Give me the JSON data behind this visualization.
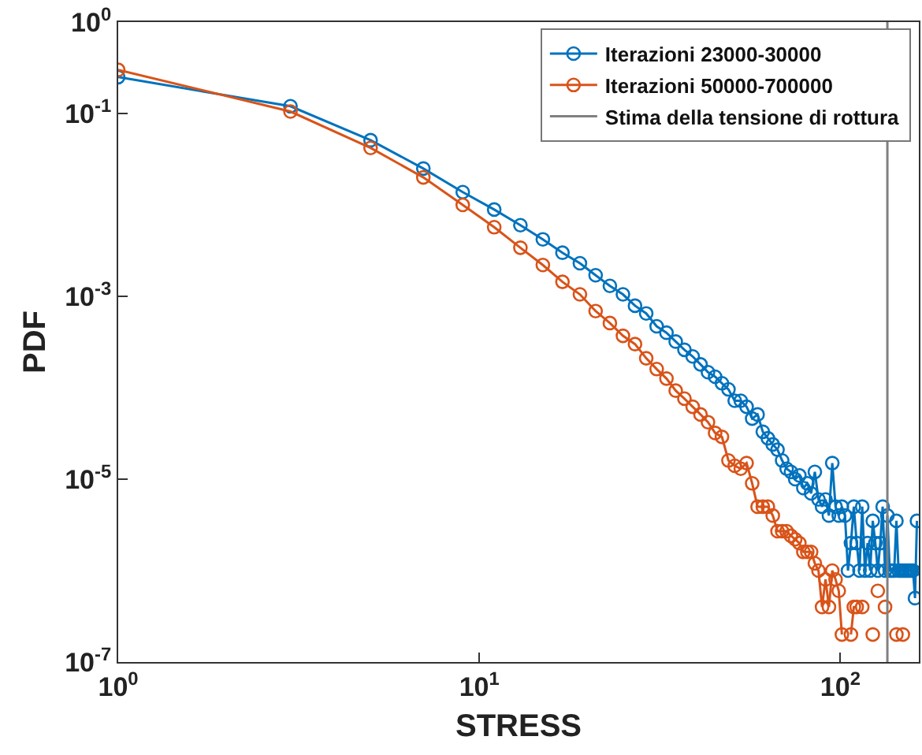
{
  "chart_data": {
    "type": "line",
    "xlabel": "STRESS",
    "ylabel": "PDF",
    "log": "xy",
    "grid": false,
    "legend": "top right",
    "marker": "circle",
    "line_style": "solid",
    "xlim": [
      1,
      165
    ],
    "xticks": [
      {
        "value": 1,
        "label": "10$^{0}$"
      },
      {
        "value": 10,
        "label": "10$^{1}$"
      },
      {
        "value": 100,
        "label": "10$^{2}$"
      }
    ],
    "ylim": [
      1e-07,
      1
    ],
    "yticks": [
      {
        "value": 1e-07,
        "label": "10$^{-7}$"
      },
      {
        "value": 1e-05,
        "label": "10$^{-5}$"
      },
      {
        "value": 0.001,
        "label": "10$^{-3}$"
      },
      {
        "value": 0.1,
        "label": "10$^{-1}$"
      },
      {
        "value": 1,
        "label": "10$^{0}$"
      }
    ],
    "x": [
      1,
      3,
      5,
      7,
      9,
      11,
      13,
      15,
      17,
      19,
      21,
      23,
      25,
      27,
      29,
      31,
      33,
      35,
      37,
      39,
      41,
      43,
      45,
      47,
      49,
      51,
      53,
      55,
      57,
      59,
      61,
      63,
      65,
      67,
      69,
      71,
      73,
      75,
      77,
      79,
      81,
      83,
      85,
      87,
      89,
      91,
      93,
      95,
      97,
      99,
      101,
      103,
      105,
      107,
      109,
      111,
      113,
      115,
      117,
      119,
      121,
      123,
      125,
      127,
      129,
      131,
      133,
      135,
      137,
      139,
      141,
      143,
      145,
      147,
      149,
      151,
      153,
      155,
      157,
      159,
      161,
      163
    ],
    "series": [
      {
        "name": "Iterazioni 23000-30000",
        "color": "#0072bd",
        "values": [
          0.25,
          0.12,
          0.051,
          0.025,
          0.0138,
          0.0089,
          0.006,
          0.0042,
          0.003,
          0.0023,
          0.0017,
          0.0013,
          0.00105,
          0.00079,
          0.00065,
          0.00047,
          0.0004,
          0.00032,
          0.00026,
          0.00022,
          0.00018,
          0.000148,
          0.000132,
          0.000112,
          9.6e-05,
          7.2e-05,
          7.2e-05,
          6.2e-05,
          4.6e-05,
          5.1e-05,
          3.3e-05,
          2.8e-05,
          2.4e-05,
          2.1e-05,
          1.6e-05,
          1.3e-05,
          1.2e-05,
          1e-05,
          1.1e-05,
          8e-06,
          9e-06,
          7e-06,
          1.2e-05,
          6e-06,
          5e-06,
          6e-06,
          4e-06,
          1.5e-05,
          5e-06,
          4e-06,
          5e-06,
          4e-06,
          1e-06,
          2e-06,
          5e-06,
          2e-06,
          1e-06,
          5e-06,
          1e-06,
          2e-06,
          1e-06,
          3.5e-06,
          2e-06,
          1e-06,
          2e-06,
          5e-06,
          1e-06,
          4e-06,
          1e-06,
          1e-06,
          1e-06,
          3.5e-06,
          1e-06,
          1e-06,
          1e-06,
          1e-06,
          1e-06,
          1e-06,
          1e-06,
          1e-06,
          5e-07,
          3.5e-06
        ]
      },
      {
        "name": "Iterazioni 50000-700000",
        "color": "#d95319",
        "values": [
          0.3,
          0.105,
          0.042,
          0.02,
          0.01,
          0.0057,
          0.0034,
          0.0022,
          0.00144,
          0.00105,
          0.00069,
          0.00051,
          0.00037,
          0.0003,
          0.00021,
          0.00016,
          0.000126,
          9.3e-05,
          7.6e-05,
          6.2e-05,
          5.1e-05,
          4.2e-05,
          3.2e-05,
          2.9e-05,
          1.6e-05,
          1.4e-05,
          1.3e-05,
          1.5e-05,
          9e-06,
          5e-06,
          5e-06,
          5e-06,
          4e-06,
          2.7e-06,
          2.7e-06,
          2.7e-06,
          2.4e-06,
          2.2e-06,
          2e-06,
          1.6e-06,
          1.6e-06,
          1.6e-06,
          1.2e-06,
          1e-06,
          4e-07,
          8e-07,
          4e-07,
          1e-06,
          8e-07,
          6e-07,
          2e-07,
          null,
          null,
          2e-07,
          4e-07,
          4e-07,
          null,
          4e-07,
          null,
          null,
          null,
          2e-07,
          null,
          6e-07,
          null,
          null,
          4e-07,
          null,
          null,
          null,
          null,
          2e-07,
          null,
          null,
          2e-07,
          null,
          null,
          null,
          null,
          null,
          null,
          null
        ]
      }
    ],
    "ref_lines": [
      {
        "axis": "x",
        "value": 135,
        "label": "Stima della tensione di rottura",
        "color": "#808080",
        "line_style": "solid"
      }
    ]
  }
}
